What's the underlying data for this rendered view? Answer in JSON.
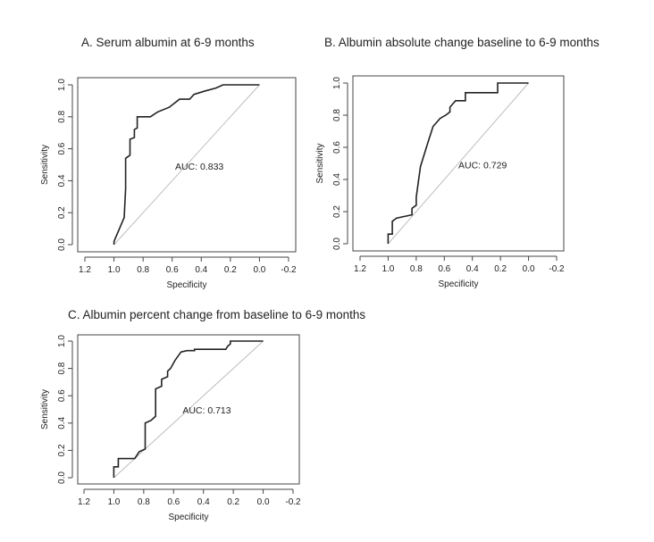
{
  "chart_data": [
    {
      "id": "a",
      "type": "line",
      "title": "A.  Serum albumin at 6-9 months",
      "xlabel": "Specificity",
      "ylabel": "Sensitivity",
      "xlim": [
        1.2,
        -0.2
      ],
      "ylim": [
        0.0,
        1.0
      ],
      "x_ticks": [
        "1.2",
        "1.0",
        "0.8",
        "0.6",
        "0.4",
        "0.2",
        "0.0",
        "-0.2"
      ],
      "y_ticks": [
        "0.0",
        "0.2",
        "0.4",
        "0.6",
        "0.8",
        "1.0"
      ],
      "annotation": "AUC: 0.833",
      "annotation_pos": [
        0.58,
        0.47
      ],
      "series": [
        {
          "x": [
            1.0,
            1.0,
            0.93,
            0.92,
            0.92,
            0.89,
            0.89,
            0.86,
            0.86,
            0.84,
            0.84,
            0.75,
            0.7,
            0.62,
            0.55,
            0.48,
            0.45,
            0.38,
            0.3,
            0.25,
            0.05,
            0.0
          ],
          "y": [
            0.0,
            0.02,
            0.17,
            0.35,
            0.54,
            0.56,
            0.66,
            0.67,
            0.72,
            0.73,
            0.8,
            0.8,
            0.83,
            0.86,
            0.91,
            0.91,
            0.94,
            0.96,
            0.98,
            1.0,
            1.0,
            1.0
          ]
        }
      ]
    },
    {
      "id": "b",
      "type": "line",
      "title": "B. Albumin absolute change baseline to 6-9 months",
      "xlabel": "Specificity",
      "ylabel": "Sensitivity",
      "xlim": [
        1.2,
        -0.2
      ],
      "ylim": [
        0.0,
        1.0
      ],
      "x_ticks": [
        "1.2",
        "1.0",
        "0.8",
        "0.6",
        "0.4",
        "0.2",
        "0.0",
        "-0.2"
      ],
      "y_ticks": [
        "0.0",
        "0.2",
        "0.4",
        "0.6",
        "0.8",
        "1.0"
      ],
      "annotation": "AUC: 0.729",
      "annotation_pos": [
        0.5,
        0.47
      ],
      "series": [
        {
          "x": [
            1.0,
            1.0,
            0.97,
            0.97,
            0.94,
            0.83,
            0.83,
            0.8,
            0.8,
            0.77,
            0.72,
            0.68,
            0.63,
            0.59,
            0.56,
            0.56,
            0.52,
            0.45,
            0.45,
            0.35,
            0.22,
            0.22,
            0.05,
            0.0
          ],
          "y": [
            0.0,
            0.06,
            0.06,
            0.14,
            0.16,
            0.18,
            0.22,
            0.24,
            0.29,
            0.48,
            0.62,
            0.73,
            0.78,
            0.8,
            0.82,
            0.85,
            0.89,
            0.89,
            0.94,
            0.94,
            0.94,
            1.0,
            1.0,
            1.0
          ]
        }
      ]
    },
    {
      "id": "c",
      "type": "line",
      "title": "C. Albumin percent change from baseline to 6-9 months",
      "xlabel": "Specificity",
      "ylabel": "Sensitivity",
      "xlim": [
        1.2,
        -0.2
      ],
      "ylim": [
        0.0,
        1.0
      ],
      "x_ticks": [
        "1.2",
        "1.0",
        "0.8",
        "0.6",
        "0.4",
        "0.2",
        "0.0",
        "-0.2"
      ],
      "y_ticks": [
        "0.0",
        "0.2",
        "0.4",
        "0.6",
        "0.8",
        "1.0"
      ],
      "annotation": "AUC: 0.713",
      "annotation_pos": [
        0.54,
        0.47
      ],
      "series": [
        {
          "x": [
            1.0,
            1.0,
            0.97,
            0.97,
            0.86,
            0.83,
            0.79,
            0.79,
            0.75,
            0.72,
            0.72,
            0.68,
            0.68,
            0.64,
            0.64,
            0.62,
            0.59,
            0.57,
            0.55,
            0.51,
            0.46,
            0.46,
            0.25,
            0.24,
            0.22,
            0.22,
            0.05,
            0.0
          ],
          "y": [
            0.0,
            0.08,
            0.08,
            0.14,
            0.14,
            0.19,
            0.21,
            0.4,
            0.42,
            0.45,
            0.65,
            0.67,
            0.72,
            0.74,
            0.78,
            0.8,
            0.86,
            0.89,
            0.92,
            0.93,
            0.93,
            0.94,
            0.94,
            0.96,
            0.98,
            1.0,
            1.0,
            1.0
          ]
        }
      ]
    }
  ]
}
